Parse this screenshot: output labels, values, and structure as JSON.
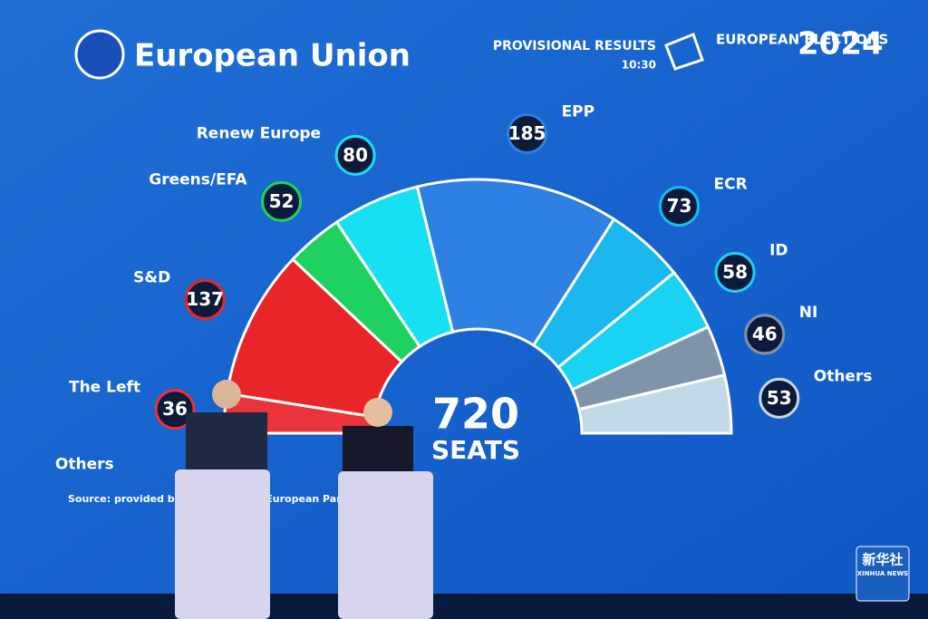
{
  "header": {
    "brand": "European Union",
    "status": "PROVISIONAL RESULTS",
    "time": "10:30",
    "event": "EUROPEAN ELECTIONS",
    "year": "2024"
  },
  "chart_data": {
    "type": "hemicycle",
    "categories": [
      "Others",
      "The Left",
      "S&D",
      "Greens/EFA",
      "Renew Europe",
      "EPP",
      "ECR",
      "ID",
      "NI",
      "Others"
    ],
    "values": [
      null,
      36,
      137,
      52,
      80,
      185,
      73,
      58,
      46,
      53
    ],
    "colors": [
      "#c2d8e6",
      "#e8343a",
      "#e8262a",
      "#1fd160",
      "#16e0f2",
      "#2e80e2",
      "#1bb8f0",
      "#1ad2f2",
      "#7f93aa",
      "#c2d8e6"
    ],
    "total": "720",
    "total_label": "SEATS"
  },
  "footer": {
    "source": "Source: provided by Verian for the European Parliament",
    "watermark": "新华社",
    "watermark_sub": "XINHUA NEWS"
  }
}
